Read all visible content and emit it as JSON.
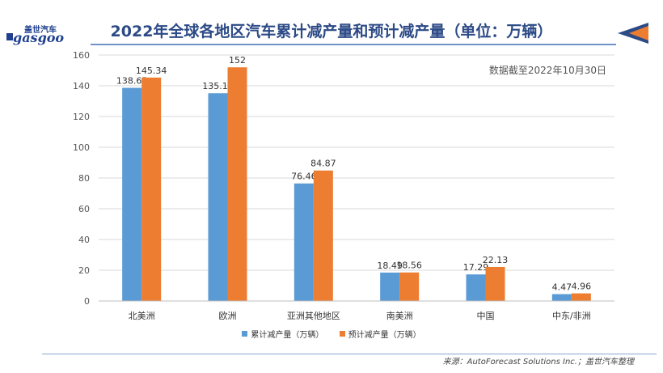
{
  "logo": {
    "cn": "盖世汽车",
    "en": "gasgoo"
  },
  "note": "数据截至2022年10月30日",
  "source": "来源：AutoForecast Solutions Inc.；盖世汽车整理",
  "colors": {
    "series1": "#5b9bd5",
    "series2": "#ed7d31",
    "title": "#2c4a86"
  },
  "chart_data": {
    "type": "bar",
    "title": "2022年全球各地区汽车累计减产量和预计减产量（单位：万辆）",
    "categories": [
      "北美洲",
      "欧洲",
      "亚洲其他地区",
      "南美洲",
      "中国",
      "中东/非洲"
    ],
    "series": [
      {
        "name": "累计减产量（万辆）",
        "values": [
          138.65,
          135.14,
          76.46,
          18.49,
          17.29,
          4.47
        ]
      },
      {
        "name": "预计减产量（万辆）",
        "values": [
          145.34,
          152,
          84.87,
          18.56,
          22.13,
          4.96
        ]
      }
    ],
    "value_labels": [
      [
        "138.65",
        "135.14",
        "76.46",
        "18.49",
        "17.29",
        "4.47"
      ],
      [
        "145.34",
        "152",
        "84.87",
        "18.56",
        "22.13",
        "4.96"
      ]
    ],
    "ylim": [
      0,
      160
    ],
    "yticks": [
      "0",
      "20",
      "40",
      "60",
      "80",
      "100",
      "120",
      "140",
      "160"
    ],
    "grid": true,
    "legend": "bottom"
  }
}
